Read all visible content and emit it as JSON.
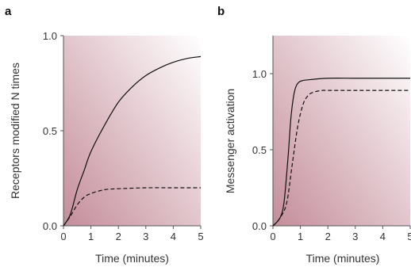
{
  "chart_data": [
    {
      "type": "line",
      "title": "a",
      "xlabel": "Time (minutes)",
      "ylabel": "Receptors modified N times",
      "xlim": [
        0,
        5
      ],
      "ylim": [
        0,
        1.0
      ],
      "x_ticks": [
        "0",
        "1",
        "2",
        "3",
        "4",
        "5"
      ],
      "y_ticks": [
        "0.0",
        "0.5",
        "1.0"
      ],
      "background_gradient": [
        "#c48d9a",
        "#ffffff"
      ],
      "line_color": "#111111",
      "series": [
        {
          "style": "solid",
          "x": [
            0,
            0.25,
            0.5,
            0.75,
            1.0,
            1.5,
            2.0,
            2.5,
            3.0,
            3.5,
            4.0,
            4.5,
            5.0
          ],
          "y": [
            0,
            0.06,
            0.19,
            0.29,
            0.39,
            0.53,
            0.65,
            0.73,
            0.79,
            0.83,
            0.86,
            0.88,
            0.89
          ]
        },
        {
          "style": "dashed",
          "x": [
            0,
            0.25,
            0.5,
            0.75,
            1.0,
            1.5,
            2.0,
            3.0,
            4.0,
            5.0
          ],
          "y": [
            0,
            0.05,
            0.11,
            0.15,
            0.17,
            0.19,
            0.195,
            0.2,
            0.2,
            0.2
          ]
        }
      ]
    },
    {
      "type": "line",
      "title": "b",
      "xlabel": "Time (minutes)",
      "ylabel": "Messenger activation",
      "xlim": [
        0,
        5
      ],
      "ylim": [
        0,
        1.25
      ],
      "x_ticks": [
        "0",
        "1",
        "2",
        "3",
        "4",
        "5"
      ],
      "y_ticks": [
        "0.0",
        "0.5",
        "1.0"
      ],
      "background_gradient": [
        "#c48d9a",
        "#ffffff"
      ],
      "line_color": "#111111",
      "series": [
        {
          "style": "solid",
          "x": [
            0,
            0.25,
            0.4,
            0.55,
            0.65,
            0.75,
            0.85,
            1.0,
            1.3,
            2.0,
            3.0,
            4.0,
            5.0
          ],
          "y": [
            0,
            0.05,
            0.15,
            0.45,
            0.7,
            0.85,
            0.92,
            0.95,
            0.96,
            0.97,
            0.97,
            0.97,
            0.97
          ]
        },
        {
          "style": "dashed",
          "x": [
            0,
            0.25,
            0.5,
            0.7,
            0.9,
            1.1,
            1.3,
            1.5,
            1.8,
            2.0,
            3.0,
            4.0,
            5.0
          ],
          "y": [
            0,
            0.05,
            0.15,
            0.4,
            0.65,
            0.8,
            0.86,
            0.88,
            0.89,
            0.89,
            0.89,
            0.89,
            0.89
          ]
        }
      ]
    }
  ]
}
